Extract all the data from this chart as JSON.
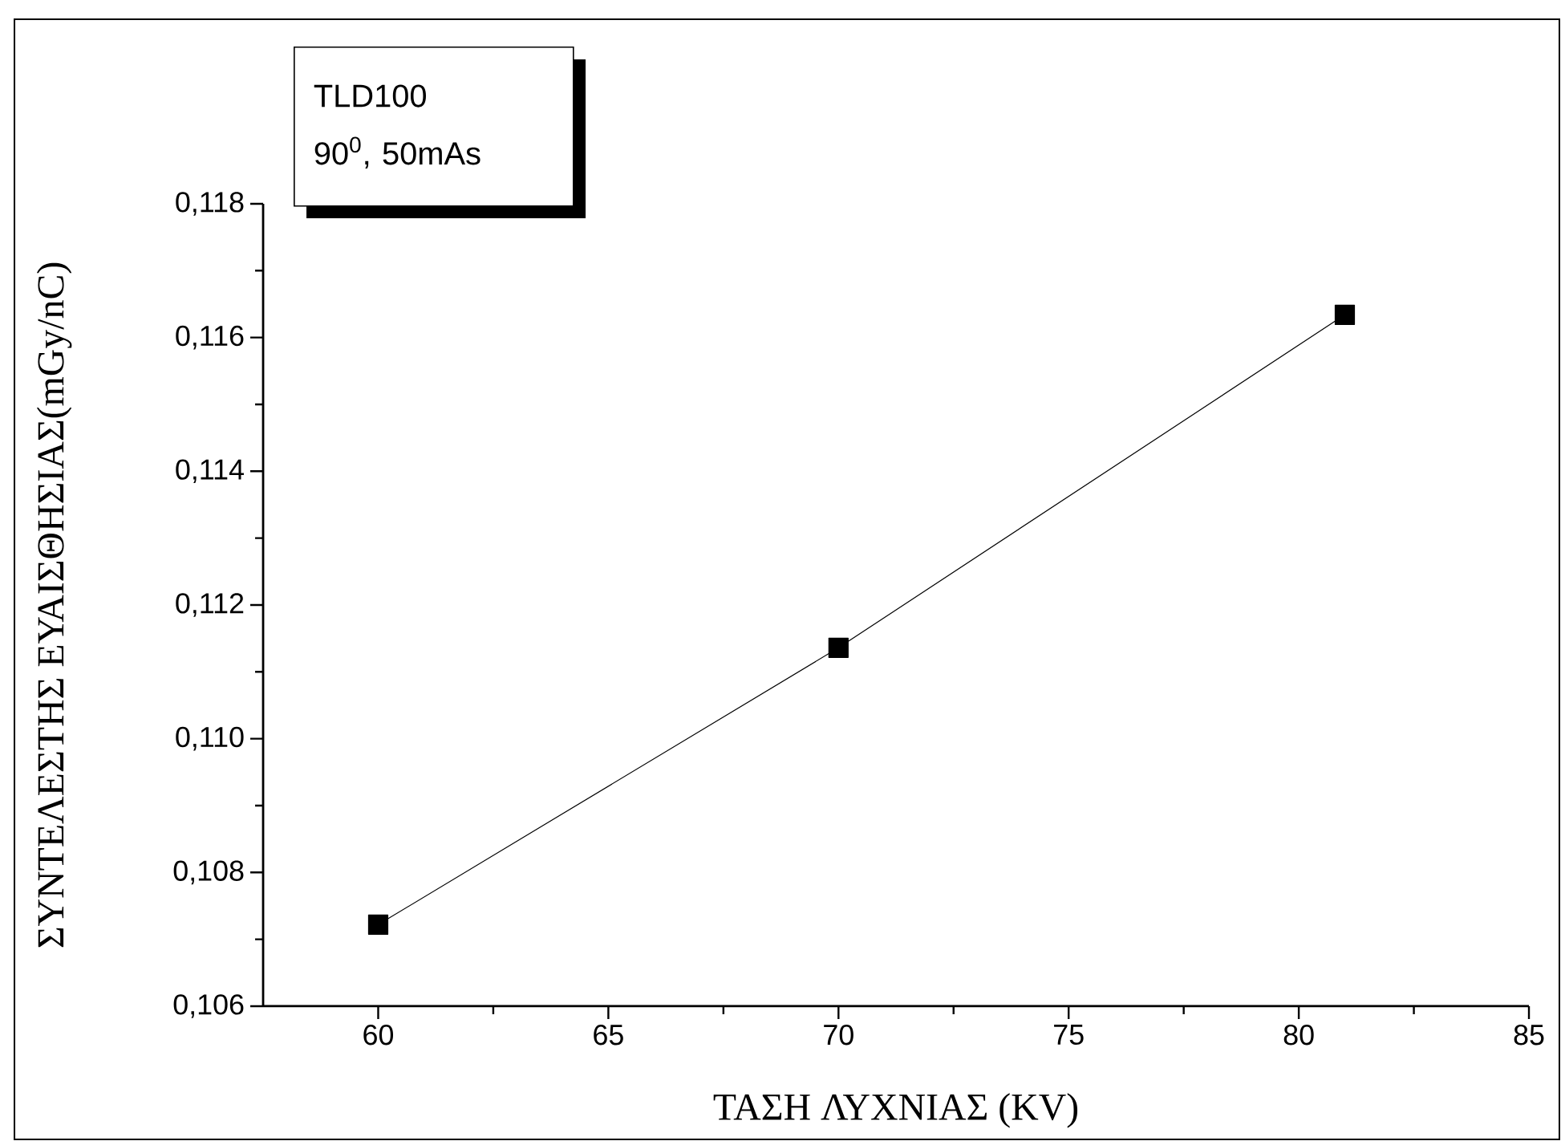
{
  "chart_data": {
    "type": "line",
    "xlabel": "ΤΑΣΗ ΛΥΧΝΙΑΣ (KV)",
    "ylabel": "ΣΥΝΤΕΛΕΣΤΗΣ ΕΥΑΙΣΘΗΣΙΑΣ(mGy/nC)",
    "annotations": [
      "TLD100",
      "90$^{0}$, 50mAs"
    ],
    "x": [
      60,
      70,
      81
    ],
    "series": [
      {
        "color": "#000000",
        "values": [
          0.10722,
          0.11136,
          0.11634
        ]
      }
    ],
    "marker": "square",
    "line_style": "solid",
    "xlim": [
      57.5,
      85
    ],
    "xticks": [
      60,
      65,
      70,
      75,
      80,
      85
    ],
    "ylim": [
      0.106,
      0.118
    ],
    "yticks": [
      {
        "value": 0.106,
        "label": "0,106"
      },
      {
        "value": 0.108,
        "label": "0,108"
      },
      {
        "value": 0.11,
        "label": "0,110"
      },
      {
        "value": 0.112,
        "label": "0,112"
      },
      {
        "value": 0.114,
        "label": "0,114"
      },
      {
        "value": 0.116,
        "label": "0,116"
      },
      {
        "value": 0.118,
        "label": "0,118"
      }
    ]
  }
}
